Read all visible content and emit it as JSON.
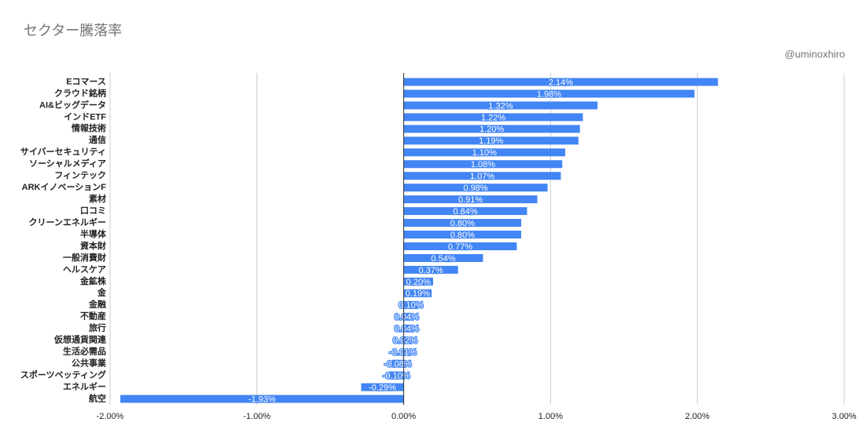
{
  "chart_data": {
    "type": "hbar",
    "title": "セクター騰落率",
    "subtitle": "@uminoxhiro",
    "categories": [
      "Eコマース",
      "クラウド銘柄",
      "AI&ビッグデータ",
      "インドETF",
      "情報技術",
      "通信",
      "サイバーセキュリティ",
      "ソーシャルメディア",
      "フィンテック",
      "ARKイノベーションF",
      "素材",
      "口コミ",
      "クリーンエネルギー",
      "半導体",
      "資本財",
      "一般消費財",
      "ヘルスケア",
      "金鉱株",
      "金",
      "金融",
      "不動産",
      "旅行",
      "仮想通貨関連",
      "生活必需品",
      "公共事業",
      "スポーツベッティング",
      "エネルギー",
      "航空"
    ],
    "values": [
      2.14,
      1.98,
      1.32,
      1.22,
      1.2,
      1.19,
      1.1,
      1.08,
      1.07,
      0.98,
      0.91,
      0.84,
      0.8,
      0.8,
      0.77,
      0.54,
      0.37,
      0.2,
      0.19,
      0.1,
      0.04,
      0.04,
      0.02,
      -0.01,
      -0.08,
      -0.1,
      -0.29,
      -1.93
    ],
    "value_labels": [
      "2.14%",
      "1.98%",
      "1.32%",
      "1.22%",
      "1.20%",
      "1.19%",
      "1.10%",
      "1.08%",
      "1.07%",
      "0.98%",
      "0.91%",
      "0.84%",
      "0.80%",
      "0.80%",
      "0.77%",
      "0.54%",
      "0.37%",
      "0.20%",
      "0.19%",
      "0.10%",
      "0.04%",
      "0.04%",
      "0.02%",
      "-0.01%",
      "-0.08%",
      "-0.10%",
      "-0.29%",
      "-1.93%"
    ],
    "color": "#4285f4",
    "xlim": [
      -2,
      3
    ],
    "xticks": [
      {
        "value": -2,
        "label": "-2.00%"
      },
      {
        "value": -1,
        "label": "-1.00%"
      },
      {
        "value": 0,
        "label": "0.00%"
      },
      {
        "value": 1,
        "label": "1.00%"
      },
      {
        "value": 2,
        "label": "2.00%"
      },
      {
        "value": 3,
        "label": "3.00%"
      }
    ],
    "grid": true
  }
}
